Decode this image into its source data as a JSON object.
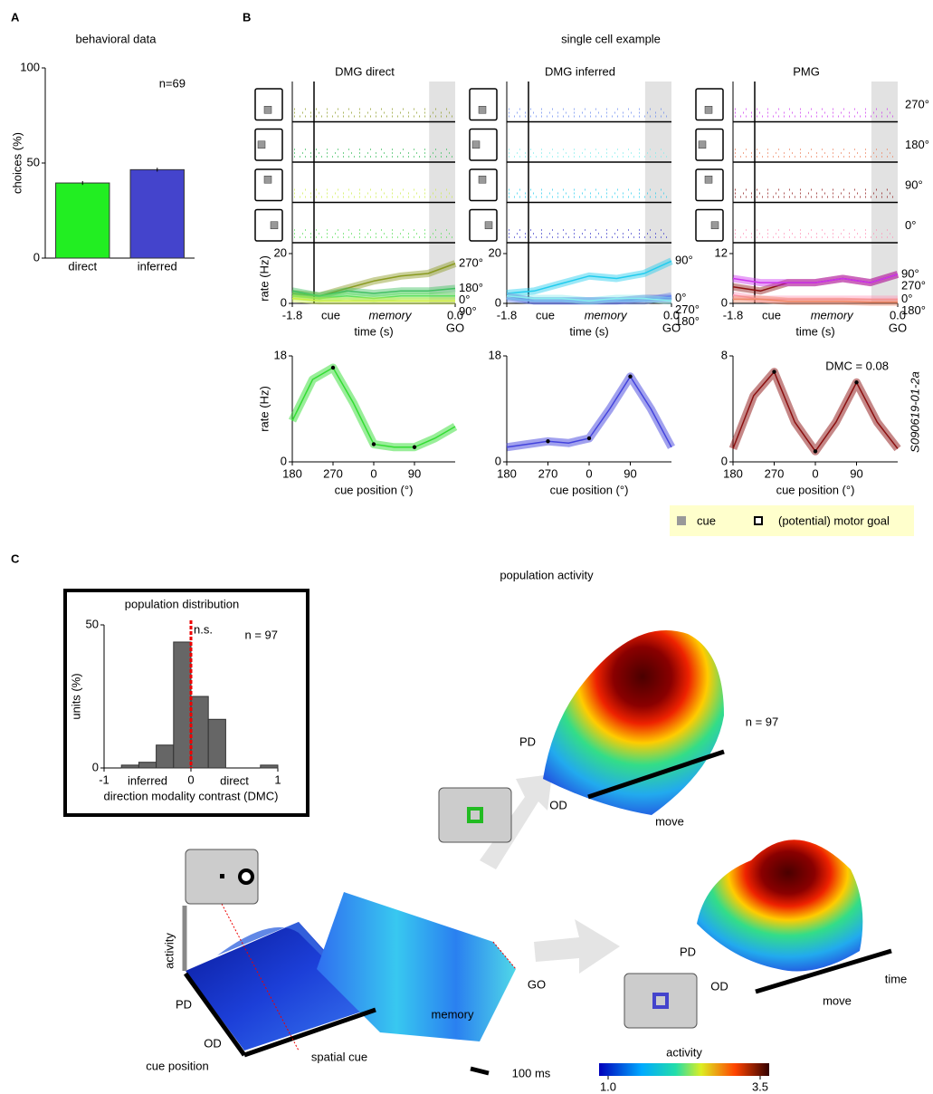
{
  "figure": {
    "panel_labels": [
      "A",
      "B",
      "C"
    ],
    "section_titles": {
      "single_cell": "single cell example",
      "population": "population activity"
    },
    "raster_labels": [
      "270°",
      "180°",
      "90°",
      "0°"
    ],
    "cell_id": "S090619-01-2a",
    "legend": {
      "cue": "cue",
      "goal": "(potential) motor goal"
    },
    "surface_texts": [
      "activity",
      "PD",
      "OD",
      "cue position",
      "spatial cue",
      "memory",
      "GO",
      "PD",
      "OD",
      "move",
      "n = 97",
      "PD",
      "OD",
      "move",
      "time",
      "100 ms"
    ],
    "colorbar": {
      "title": "activity",
      "ticks": [
        {
          "value": 1,
          "label": "1.0"
        },
        {
          "value": 3.5,
          "label": "3.5"
        }
      ]
    }
  },
  "chart_data": [
    {
      "type": "bar",
      "title": "behavioral data",
      "ylabel": "choices (%)",
      "annotation": "n=69",
      "categories": [
        "direct",
        "inferred"
      ],
      "values": [
        39.5,
        46.5
      ],
      "errors": [
        1,
        1
      ],
      "colors": [
        "#22ee22",
        "#4444cc"
      ],
      "ylim": [
        0,
        100
      ],
      "yticks": [
        0,
        50,
        100
      ]
    },
    {
      "type": "line",
      "title": "DMG direct",
      "ylabel": "rate (Hz)",
      "xlabel": "time (s)",
      "annotations": [
        "cue",
        "memory",
        "GO"
      ],
      "x": [
        -1.8,
        -1.5,
        -1.2,
        -0.9,
        -0.6,
        -0.3,
        0
      ],
      "xlim": [
        -1.8,
        0
      ],
      "xticks": [
        -1.8,
        {
          "value": 0,
          "label": "0.0"
        }
      ],
      "ylim": [
        0,
        20
      ],
      "yticks": [
        0,
        20
      ],
      "series": [
        {
          "name": "270°",
          "color": "#8a9a20",
          "values": [
            4,
            3,
            6,
            9,
            11,
            12,
            16
          ]
        },
        {
          "name": "180°",
          "color": "#40c060",
          "values": [
            5,
            3,
            5,
            4,
            5,
            5,
            6
          ]
        },
        {
          "name": "0°",
          "color": "#60e060",
          "values": [
            3,
            2,
            3,
            2,
            3,
            3,
            3
          ]
        },
        {
          "name": "90°",
          "color": "#ccee44",
          "values": [
            2,
            1,
            1,
            1,
            1,
            1,
            1
          ]
        }
      ]
    },
    {
      "type": "line",
      "title": "DMG inferred",
      "xlabel": "time (s)",
      "annotations": [
        "cue",
        "memory",
        "GO"
      ],
      "x": [
        -1.8,
        -1.5,
        -1.2,
        -0.9,
        -0.6,
        -0.3,
        0
      ],
      "xlim": [
        -1.8,
        0
      ],
      "xticks": [
        -1.8,
        {
          "value": 0,
          "label": "0.0"
        }
      ],
      "ylim": [
        0,
        20
      ],
      "yticks": [
        0,
        20
      ],
      "series": [
        {
          "name": "90°",
          "color": "#22ccee",
          "values": [
            4,
            5,
            8,
            11,
            10,
            12,
            17
          ]
        },
        {
          "name": "0°",
          "color": "#4444cc",
          "values": [
            3,
            1,
            1,
            1,
            1,
            2,
            2
          ]
        },
        {
          "name": "270°",
          "color": "#6688ee",
          "values": [
            2,
            1,
            1,
            1,
            1,
            1,
            3
          ]
        },
        {
          "name": "180°",
          "color": "#88eeee",
          "values": [
            3,
            2,
            2,
            1,
            2,
            2,
            1
          ]
        }
      ]
    },
    {
      "type": "line",
      "title": "PMG",
      "xlabel": "time (s)",
      "annotations": [
        "cue",
        "memory",
        "GO"
      ],
      "x": [
        -1.8,
        -1.5,
        -1.2,
        -0.9,
        -0.6,
        -0.3,
        0
      ],
      "xlim": [
        -1.8,
        0
      ],
      "xticks": [
        -1.8,
        {
          "value": 0,
          "label": "0.0"
        }
      ],
      "ylim": [
        0,
        12
      ],
      "yticks": [
        0,
        12
      ],
      "series": [
        {
          "name": "90°",
          "color": "#8b1010",
          "values": [
            4,
            3,
            5,
            5,
            6,
            5,
            7
          ]
        },
        {
          "name": "270°",
          "color": "#cc33ee",
          "values": [
            6,
            5,
            5,
            5,
            6,
            5,
            7
          ]
        },
        {
          "name": "0°",
          "color": "#ff99bb",
          "values": [
            2,
            1,
            1,
            1,
            1,
            1,
            1
          ]
        },
        {
          "name": "180°",
          "color": "#ee8866",
          "values": [
            1,
            1,
            0.5,
            0.5,
            0.5,
            0.3,
            0.3
          ]
        }
      ]
    },
    {
      "type": "tuning",
      "ylabel": "rate  (Hz)",
      "xlabel": "cue position (°)",
      "color": "#33dd33",
      "markers": [
        270,
        360,
        450
      ],
      "x": [
        180,
        225,
        270,
        315,
        360,
        405,
        450,
        495,
        540
      ],
      "values": [
        7,
        14,
        16,
        10,
        3,
        2.5,
        2.5,
        4,
        6
      ],
      "xlim": [
        180,
        540
      ],
      "xticks": [
        180,
        270,
        {
          "value": 360,
          "label": "0"
        },
        {
          "value": 450,
          "label": "90"
        }
      ],
      "ylim": [
        0,
        18
      ],
      "yticks": [
        0,
        18
      ]
    },
    {
      "type": "tuning",
      "xlabel": "cue position (°)",
      "color": "#4444dd",
      "markers": [
        270,
        360,
        450
      ],
      "x": [
        180,
        225,
        270,
        315,
        360,
        405,
        450,
        495,
        540
      ],
      "values": [
        2.5,
        3,
        3.5,
        3.2,
        4,
        9,
        14.5,
        9,
        2.5
      ],
      "xlim": [
        180,
        540
      ],
      "xticks": [
        180,
        270,
        {
          "value": 360,
          "label": "0"
        },
        {
          "value": 450,
          "label": "90"
        }
      ],
      "ylim": [
        0,
        18
      ],
      "yticks": [
        0,
        18
      ]
    },
    {
      "type": "tuning",
      "xlabel": "cue position (°)",
      "color": "#8b1010",
      "markers": [
        270,
        360,
        450
      ],
      "annotation": "DMC = 0.08",
      "x": [
        180,
        225,
        270,
        315,
        360,
        405,
        450,
        495,
        540
      ],
      "values": [
        1,
        5,
        6.8,
        3,
        0.8,
        3,
        6,
        3,
        1
      ],
      "xlim": [
        180,
        540
      ],
      "xticks": [
        180,
        270,
        {
          "value": 360,
          "label": "0"
        },
        {
          "value": 450,
          "label": "90"
        }
      ],
      "ylim": [
        0,
        8
      ],
      "yticks": [
        0,
        8
      ]
    },
    {
      "type": "histogram",
      "title": "population distribution",
      "ylabel": "units (%)",
      "xlabel": "direction modality contrast (DMC)",
      "annotations": [
        "n = 97",
        "n.s.",
        "inferred",
        "direct"
      ],
      "reference_line": 0,
      "bins": [
        -1,
        -0.8,
        -0.6,
        -0.4,
        -0.2,
        0,
        0.2,
        0.4,
        0.6,
        0.8,
        1
      ],
      "counts": [
        0,
        1,
        2,
        8,
        44,
        25,
        17,
        0,
        0,
        1
      ],
      "color": "#666666",
      "xlim": [
        -1,
        1
      ],
      "xticks": [
        -1,
        0,
        1
      ],
      "ylim": [
        0,
        50
      ],
      "yticks": [
        0,
        50
      ]
    }
  ]
}
